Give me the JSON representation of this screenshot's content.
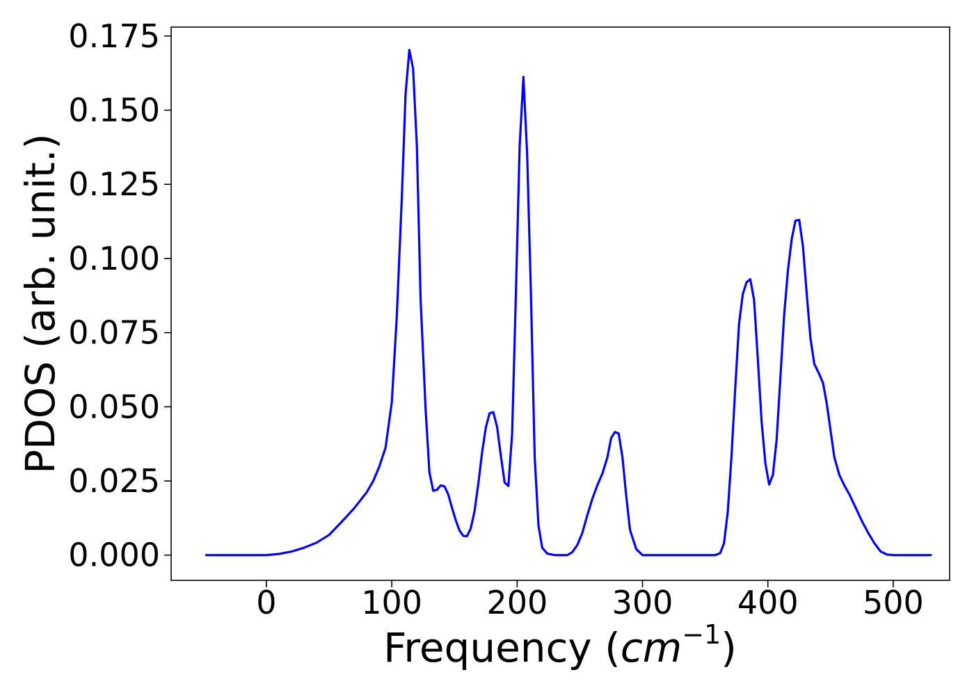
{
  "chart_data": {
    "type": "line",
    "title": "",
    "xlabel": {
      "prefix": "Frequency (",
      "unit_base": "cm",
      "unit_exponent": "−1",
      "suffix": ")"
    },
    "ylabel": "PDOS (arb. unit.)",
    "xlim": [
      -76,
      545
    ],
    "ylim": [
      -0.0085,
      0.178
    ],
    "xticks": [
      0,
      100,
      200,
      300,
      400,
      500
    ],
    "xtick_labels": [
      "0",
      "100",
      "200",
      "300",
      "400",
      "500"
    ],
    "yticks": [
      0.0,
      0.025,
      0.05,
      0.075,
      0.1,
      0.125,
      0.15,
      0.175
    ],
    "ytick_labels": [
      "0.000",
      "0.025",
      "0.050",
      "0.075",
      "0.100",
      "0.125",
      "0.150",
      "0.175"
    ],
    "grid": false,
    "legend": null,
    "series": [
      {
        "color": "#0000ff",
        "x": [
          -48,
          -20,
          0,
          10,
          20,
          30,
          40,
          50,
          60,
          70,
          80,
          85,
          90,
          95,
          100,
          104,
          108,
          111,
          114,
          117,
          120,
          123,
          127,
          130,
          133,
          136,
          139,
          142,
          145,
          148,
          151,
          154,
          157,
          160,
          163,
          166,
          169,
          172,
          175,
          178,
          181,
          184,
          187,
          190,
          193,
          196,
          199,
          202,
          205,
          208,
          211,
          214,
          217,
          220,
          224,
          230,
          235,
          240,
          244,
          248,
          252,
          256,
          260,
          264,
          268,
          272,
          275,
          278,
          281,
          284,
          287,
          290,
          295,
          300,
          350,
          358,
          362,
          365,
          368,
          371,
          374,
          377,
          380,
          383,
          386,
          389,
          392,
          395,
          398,
          401,
          404,
          407,
          410,
          413,
          416,
          419,
          422,
          425,
          428,
          431,
          434,
          437,
          441,
          444,
          447,
          450,
          453,
          457,
          461,
          465,
          470,
          475,
          480,
          485,
          490,
          495,
          500,
          530
        ],
        "y": [
          0,
          0,
          0,
          0.0004,
          0.0012,
          0.0025,
          0.0042,
          0.0068,
          0.0112,
          0.0158,
          0.0212,
          0.0248,
          0.0298,
          0.0362,
          0.0515,
          0.0805,
          0.1205,
          0.1555,
          0.1703,
          0.164,
          0.138,
          0.086,
          0.049,
          0.028,
          0.0217,
          0.022,
          0.0235,
          0.0232,
          0.0205,
          0.016,
          0.0118,
          0.0083,
          0.0065,
          0.0064,
          0.009,
          0.0148,
          0.024,
          0.0345,
          0.043,
          0.0478,
          0.0482,
          0.0432,
          0.0335,
          0.0245,
          0.0233,
          0.041,
          0.088,
          0.138,
          0.1612,
          0.135,
          0.088,
          0.033,
          0.01,
          0.0025,
          0.0005,
          0,
          0,
          0,
          0.001,
          0.0034,
          0.0075,
          0.0135,
          0.019,
          0.0236,
          0.0275,
          0.033,
          0.0395,
          0.0415,
          0.041,
          0.033,
          0.02,
          0.0085,
          0.002,
          0,
          0,
          0,
          0.0007,
          0.004,
          0.0145,
          0.0335,
          0.0565,
          0.078,
          0.088,
          0.092,
          0.093,
          0.086,
          0.066,
          0.045,
          0.031,
          0.0238,
          0.027,
          0.039,
          0.06,
          0.081,
          0.096,
          0.1065,
          0.1128,
          0.113,
          0.104,
          0.088,
          0.073,
          0.0645,
          0.061,
          0.058,
          0.051,
          0.042,
          0.033,
          0.027,
          0.0235,
          0.0205,
          0.016,
          0.0115,
          0.0075,
          0.004,
          0.0012,
          0.0002,
          0,
          0
        ]
      }
    ]
  }
}
